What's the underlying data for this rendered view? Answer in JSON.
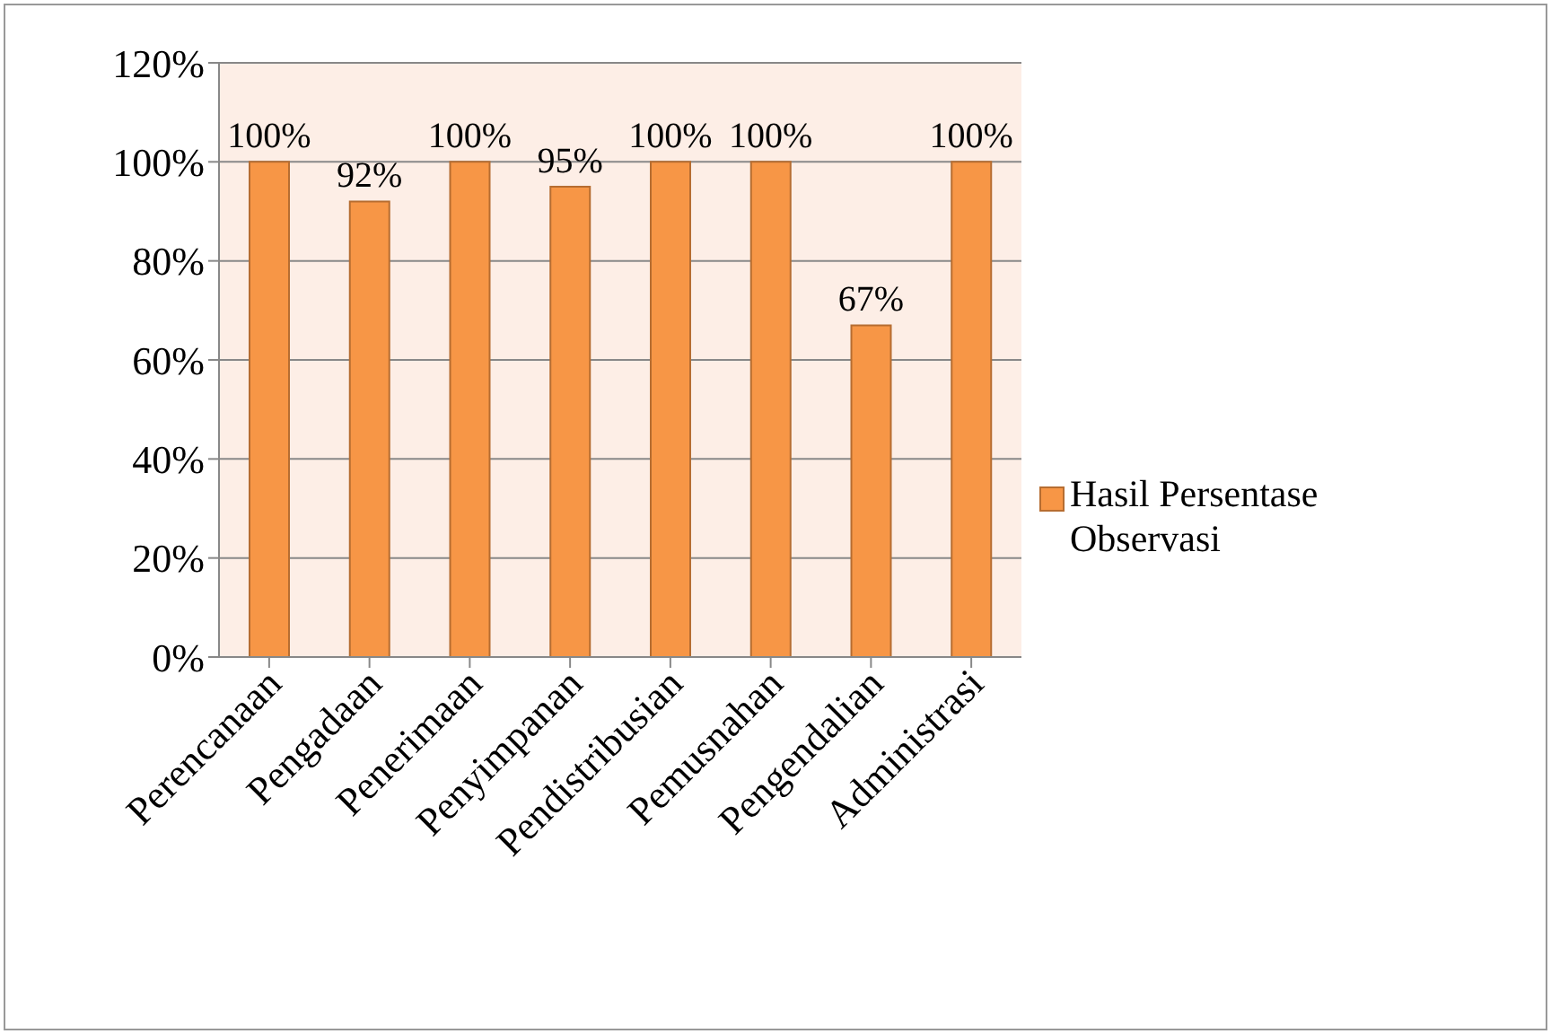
{
  "chart_data": {
    "type": "bar",
    "categories": [
      "Perencanaan",
      "Pengadaan",
      "Penerimaan",
      "Penyimpanan",
      "Pendistribusian",
      "Pemusnahan",
      "Pengendalian",
      "Administrasi"
    ],
    "series": [
      {
        "name": "Hasil Persentase Observasi",
        "color": "#f79646",
        "values": [
          100,
          92,
          100,
          95,
          100,
          100,
          67,
          100
        ],
        "value_labels": [
          "100%",
          "92%",
          "100%",
          "95%",
          "100%",
          "100%",
          "67%",
          "100%"
        ]
      }
    ],
    "ylim": [
      0,
      120
    ],
    "yticks": [
      {
        "value": 0,
        "label": "0%"
      },
      {
        "value": 20,
        "label": "20%"
      },
      {
        "value": 40,
        "label": "40%"
      },
      {
        "value": 60,
        "label": "60%"
      },
      {
        "value": 80,
        "label": "80%"
      },
      {
        "value": 100,
        "label": "100%"
      },
      {
        "value": 120,
        "label": "120%"
      }
    ],
    "grid": "y",
    "legend": "right"
  }
}
